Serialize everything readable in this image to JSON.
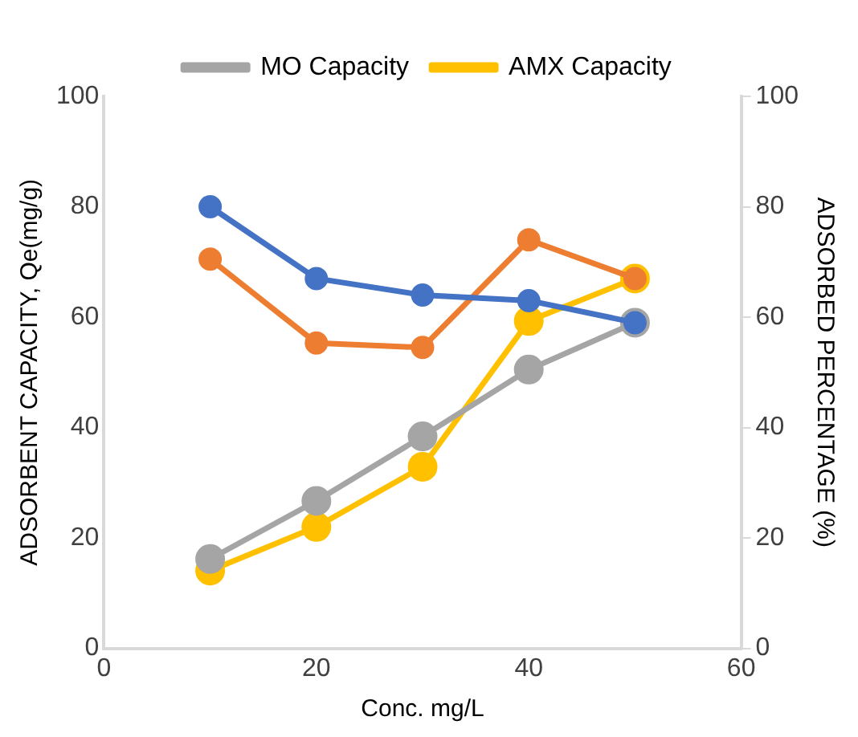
{
  "chart_data": {
    "type": "line",
    "xlabel": "Conc. mg/L",
    "ylabel": "ADSORBENT CAPACITY, Qe(mg/g)",
    "y2label": "ADSORBED PERCENTAGE (%)",
    "x": [
      10,
      20,
      30,
      40,
      50
    ],
    "series": [
      {
        "name": "MO Capacity",
        "color": "#a5a5a5",
        "values": [
          16.2,
          26.7,
          38.4,
          50.5,
          59
        ]
      },
      {
        "name": "AMX Capacity",
        "color": "#ffc000",
        "values": [
          14.1,
          22,
          32.9,
          59.3,
          67
        ]
      },
      {
        "color": "#4472c4",
        "axis": "y2",
        "values": [
          80,
          67,
          64,
          63,
          59
        ]
      },
      {
        "color": "#ed7d31",
        "axis": "y2",
        "values": [
          70.5,
          55.3,
          54.5,
          74,
          67
        ]
      }
    ],
    "xlim": [
      0,
      60
    ],
    "xticks": [
      0,
      20,
      40,
      60
    ],
    "ylim": [
      0,
      100
    ],
    "yticks": [
      0,
      20,
      40,
      60,
      80,
      100
    ],
    "y2lim": [
      0,
      100
    ],
    "y2ticks": [
      0,
      20,
      40,
      60,
      80,
      100
    ],
    "grid": false,
    "legend": "top",
    "marker": "circle",
    "line_style": "solid"
  }
}
